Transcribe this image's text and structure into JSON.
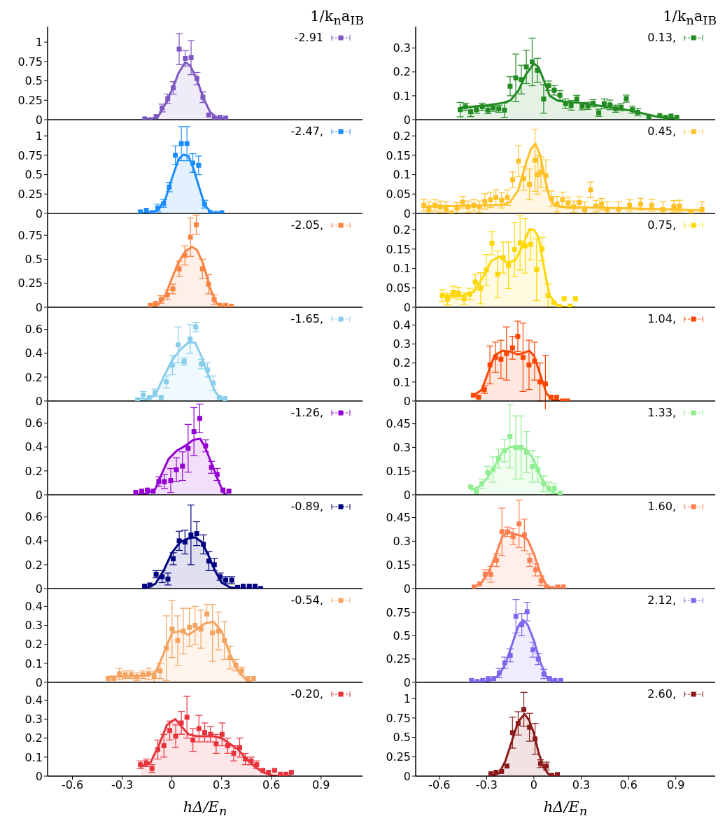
{
  "chart_data": [
    {
      "type": "scatter",
      "legend_title": "1/k$_{n}$a$_{IB}$",
      "legend": "top right",
      "tick_labels": "y",
      "xlim": [
        -0.75,
        1.15
      ],
      "xticks": [
        -0.6,
        -0.3,
        0,
        0.3,
        0.6,
        0.9
      ],
      "ylim": [
        0,
        1.2
      ],
      "yticks": [
        0,
        0.25,
        0.5,
        0.75,
        1
      ],
      "series": [
        {
          "name": "-2.91",
          "color": "#7e57c2",
          "marker": "square",
          "x": [
            -0.164,
            -0.13,
            -0.095,
            -0.059,
            -0.025,
            0.008,
            0.044,
            0.081,
            0.116,
            0.151,
            0.187,
            0.222,
            0.256,
            0.291,
            0.325
          ],
          "values": [
            0.01,
            0,
            0.04,
            0.15,
            0.27,
            0.41,
            0.91,
            0.79,
            0.8,
            0.53,
            0.29,
            0.06,
            0.02,
            0.03,
            0.02
          ],
          "errors": [
            null,
            null,
            null,
            0.05,
            0.06,
            0.08,
            0.2,
            0.1,
            0.22,
            0.08,
            0.07,
            null,
            null,
            null,
            null
          ]
        },
        {
          "type": "area",
          "color": "#7e57c2",
          "x": [
            -0.16,
            -0.12,
            -0.08,
            -0.04,
            0,
            0.04,
            0.08,
            0.11,
            0.15,
            0.19,
            0.23,
            0.27,
            0.33
          ],
          "values": [
            0,
            0.01,
            0.05,
            0.2,
            0.38,
            0.6,
            0.74,
            0.7,
            0.52,
            0.28,
            0.1,
            0.03,
            0
          ]
        }
      ]
    },
    {
      "type": "scatter",
      "legend": "top right",
      "tick_labels": "y",
      "xlim": [
        -0.75,
        1.15
      ],
      "xticks": [
        -0.6,
        -0.3,
        0,
        0.3,
        0.6,
        0.9
      ],
      "ylim": [
        0,
        1.2
      ],
      "yticks": [
        0,
        0.25,
        0.5,
        0.75,
        1
      ],
      "series": [
        {
          "name": "-2.47,",
          "color": "#1a8cff",
          "marker": "square",
          "x": [
            -0.19,
            -0.154,
            -0.12,
            -0.085,
            -0.05,
            -0.016,
            0.021,
            0.057,
            0.091,
            0.126,
            0.161,
            0.197,
            0.232,
            0.267,
            0.301
          ],
          "values": [
            0.02,
            0.04,
            0.01,
            0.07,
            0.13,
            0.34,
            0.75,
            0.9,
            0.9,
            0.65,
            0.62,
            0.12,
            0.01,
            0,
            0.01
          ],
          "errors": [
            null,
            null,
            null,
            0.05,
            0.05,
            0.06,
            0.12,
            0.22,
            0.22,
            0.12,
            0.12,
            0.05,
            null,
            null,
            null
          ]
        },
        {
          "type": "area",
          "color": "#1a8cff",
          "x": [
            -0.19,
            -0.12,
            -0.08,
            -0.04,
            0,
            0.04,
            0.07,
            0.1,
            0.13,
            0.17,
            0.2,
            0.24,
            0.3
          ],
          "values": [
            0,
            0.01,
            0.05,
            0.18,
            0.45,
            0.7,
            0.76,
            0.74,
            0.58,
            0.3,
            0.1,
            0.01,
            0
          ]
        }
      ]
    },
    {
      "type": "scatter",
      "legend": "top right",
      "tick_labels": "y",
      "xlim": [
        -0.75,
        1.15
      ],
      "xticks": [
        -0.6,
        -0.3,
        0,
        0.3,
        0.6,
        0.9
      ],
      "ylim": [
        0,
        0.97
      ],
      "yticks": [
        0,
        0.25,
        0.5,
        0.75
      ],
      "series": [
        {
          "name": "-2.05,",
          "color": "#f98542",
          "marker": "square",
          "x": [
            -0.13,
            -0.099,
            -0.065,
            -0.028,
            0.006,
            0.044,
            0.078,
            0.112,
            0.147,
            0.184,
            0.221,
            0.255,
            0.289,
            0.324,
            0.358
          ],
          "values": [
            0.02,
            0.04,
            0.08,
            0.13,
            0.19,
            0.4,
            0.54,
            0.73,
            0.86,
            0.4,
            0.24,
            0.08,
            0.02,
            0.02,
            0.01
          ],
          "errors": [
            null,
            null,
            0.04,
            0.05,
            0.05,
            0.08,
            0.1,
            0.2,
            0.1,
            0.1,
            0.1,
            0.05,
            null,
            null,
            null
          ]
        },
        {
          "type": "area",
          "color": "#f98542",
          "x": [
            -0.12,
            -0.08,
            -0.04,
            0,
            0.04,
            0.08,
            0.12,
            0.15,
            0.19,
            0.23,
            0.27,
            0.31,
            0.36
          ],
          "values": [
            0,
            0.03,
            0.12,
            0.3,
            0.47,
            0.58,
            0.63,
            0.6,
            0.45,
            0.2,
            0.04,
            0,
            0
          ]
        }
      ]
    },
    {
      "type": "scatter",
      "legend": "top right",
      "tick_labels": "y",
      "xlim": [
        -0.75,
        1.15
      ],
      "xticks": [
        -0.6,
        -0.3,
        0,
        0.3,
        0.6,
        0.9
      ],
      "ylim": [
        0,
        0.78
      ],
      "yticks": [
        0,
        0.2,
        0.4,
        0.6
      ],
      "series": [
        {
          "name": "-1.65,",
          "color": "#87ceeb",
          "marker": "square",
          "x": [
            -0.207,
            -0.173,
            -0.136,
            -0.102,
            -0.065,
            -0.034,
            0.003,
            0.038,
            0.074,
            0.11,
            0.144,
            0.178,
            0.215,
            0.249,
            0.286,
            0.32
          ],
          "values": [
            0.01,
            0.05,
            0.03,
            0.07,
            0.03,
            0.16,
            0.3,
            0.47,
            0.33,
            0.52,
            0.62,
            0.31,
            0.26,
            0.15,
            0.03,
            0.02
          ],
          "errors": [
            null,
            0.03,
            null,
            0.03,
            null,
            0.05,
            0.08,
            0.15,
            0.03,
            0.12,
            0.04,
            0.04,
            0.06,
            0.06,
            null,
            null
          ]
        },
        {
          "type": "area",
          "color": "#87ceeb",
          "x": [
            -0.2,
            -0.15,
            -0.1,
            -0.05,
            0,
            0.05,
            0.1,
            0.14,
            0.18,
            0.22,
            0.26,
            0.3,
            0.32
          ],
          "values": [
            0,
            0.01,
            0.05,
            0.2,
            0.34,
            0.43,
            0.49,
            0.49,
            0.37,
            0.22,
            0.08,
            0.01,
            0
          ]
        }
      ]
    },
    {
      "type": "scatter",
      "legend": "top right",
      "tick_labels": "y",
      "xlim": [
        -0.75,
        1.15
      ],
      "xticks": [
        -0.6,
        -0.3,
        0,
        0.3,
        0.6,
        0.9
      ],
      "ylim": [
        0,
        0.78
      ],
      "yticks": [
        0,
        0.2,
        0.4,
        0.6
      ],
      "series": [
        {
          "name": "-1.26,",
          "color": "#9400d3",
          "marker": "square",
          "x": [
            -0.218,
            -0.182,
            -0.148,
            -0.113,
            -0.079,
            -0.045,
            -0.007,
            0.027,
            0.064,
            0.098,
            0.133,
            0.168,
            0.204,
            0.239,
            0.273,
            0.308,
            0.344
          ],
          "values": [
            0.02,
            0.03,
            0.04,
            0.03,
            0.11,
            0.11,
            0.12,
            0.21,
            0.24,
            0.39,
            0.53,
            0.64,
            0.41,
            0.23,
            0.17,
            0.04,
            0.03
          ],
          "errors": [
            null,
            null,
            null,
            null,
            0.04,
            0.06,
            0.1,
            0.1,
            0.12,
            0.2,
            0.2,
            0.12,
            0.05,
            0.05,
            0.05,
            null,
            null
          ]
        },
        {
          "type": "area",
          "color": "#9400d3",
          "x": [
            -0.22,
            -0.15,
            -0.1,
            -0.06,
            -0.02,
            0.03,
            0.08,
            0.13,
            0.17,
            0.2,
            0.24,
            0.28,
            0.31,
            0.33
          ],
          "values": [
            0,
            0.01,
            0.05,
            0.18,
            0.3,
            0.37,
            0.41,
            0.46,
            0.47,
            0.4,
            0.26,
            0.12,
            0.02,
            0
          ]
        }
      ]
    },
    {
      "type": "scatter",
      "legend": "top right",
      "tick_labels": "y",
      "xlim": [
        -0.75,
        1.15
      ],
      "xticks": [
        -0.6,
        -0.3,
        0,
        0.3,
        0.6,
        0.9
      ],
      "ylim": [
        0,
        0.78
      ],
      "yticks": [
        0,
        0.2,
        0.4,
        0.6
      ],
      "series": [
        {
          "name": "-0.89,",
          "color": "#000080",
          "marker": "square",
          "x": [
            -0.165,
            -0.133,
            -0.095,
            -0.059,
            -0.024,
            0.008,
            0.044,
            0.079,
            0.115,
            0.15,
            0.19,
            0.223,
            0.256,
            0.291,
            0.325,
            0.361,
            0.396,
            0.43,
            0.467,
            0.502,
            0.536
          ],
          "values": [
            0.02,
            0.03,
            0.12,
            0.1,
            0.08,
            0.25,
            0.4,
            0.39,
            0.45,
            0.46,
            0.37,
            0.23,
            0.2,
            0.1,
            0.07,
            0.07,
            0.01,
            0.02,
            0.02,
            0.02,
            0
          ],
          "errors": [
            null,
            null,
            0.03,
            0.05,
            0.05,
            0.05,
            0.08,
            0.1,
            0.25,
            0.1,
            0.08,
            0.08,
            0.05,
            0.03,
            0.03,
            0.03,
            null,
            null,
            null,
            null,
            null
          ]
        },
        {
          "type": "area",
          "color": "#000080",
          "x": [
            -0.16,
            -0.1,
            -0.05,
            0,
            0.05,
            0.1,
            0.14,
            0.18,
            0.22,
            0.26,
            0.3,
            0.35,
            0.4,
            0.55
          ],
          "values": [
            0,
            0.04,
            0.15,
            0.3,
            0.39,
            0.42,
            0.43,
            0.39,
            0.28,
            0.15,
            0.05,
            0.01,
            0,
            0
          ]
        }
      ]
    },
    {
      "type": "scatter",
      "legend": "top right",
      "tick_labels": "y",
      "xlim": [
        -0.75,
        1.15
      ],
      "xticks": [
        -0.6,
        -0.3,
        0,
        0.3,
        0.6,
        0.9
      ],
      "ylim": [
        0,
        0.49
      ],
      "yticks": [
        0,
        0.1,
        0.2,
        0.3,
        0.4
      ],
      "series": [
        {
          "name": "-0.54,",
          "color": "#f4a460",
          "marker": "square",
          "x": [
            -0.385,
            -0.351,
            -0.317,
            -0.281,
            -0.246,
            -0.211,
            -0.175,
            -0.14,
            -0.107,
            -0.071,
            -0.034,
            0.001,
            0.035,
            0.069,
            0.106,
            0.14,
            0.175,
            0.211,
            0.245,
            0.281,
            0.317,
            0.351,
            0.386,
            0.421,
            0.457,
            0.492
          ],
          "values": [
            0.02,
            0.02,
            0.045,
            0.04,
            0.04,
            0.03,
            0.04,
            0.045,
            0.03,
            0.06,
            0.18,
            0.28,
            0.22,
            0.27,
            0.29,
            0.3,
            0.28,
            0.36,
            0.26,
            0.27,
            0.22,
            0.13,
            0.09,
            0.06,
            0.02,
            0.02
          ],
          "errors": [
            null,
            null,
            0.03,
            0.02,
            0.02,
            0.02,
            0.02,
            0.03,
            0.03,
            0.04,
            0.17,
            0.15,
            0.13,
            0.12,
            0.1,
            0.1,
            0.1,
            0.05,
            0.15,
            0.1,
            0.1,
            0.06,
            0.03,
            0.02,
            null,
            null
          ]
        },
        {
          "type": "area",
          "color": "#f4a460",
          "x": [
            -0.38,
            -0.25,
            -0.15,
            -0.1,
            -0.05,
            0,
            0.05,
            0.1,
            0.15,
            0.2,
            0.25,
            0.3,
            0.35,
            0.4,
            0.45,
            0.48
          ],
          "values": [
            0.03,
            0.03,
            0.035,
            0.05,
            0.15,
            0.26,
            0.27,
            0.25,
            0.28,
            0.31,
            0.32,
            0.27,
            0.15,
            0.06,
            0.01,
            0
          ]
        }
      ]
    },
    {
      "type": "scatter",
      "legend": "top right",
      "xlabel": "hΔ/E$_{n}$",
      "xlim": [
        -0.75,
        1.15
      ],
      "xticks": [
        -0.6,
        -0.3,
        0,
        0.3,
        0.6,
        0.9
      ],
      "ylim": [
        0,
        0.49
      ],
      "yticks": [
        0,
        0.1,
        0.2,
        0.3,
        0.4
      ],
      "series": [
        {
          "name": "-0.20,",
          "color": "#e8333c",
          "marker": "square",
          "x": [
            -0.19,
            -0.154,
            -0.12,
            -0.085,
            -0.048,
            -0.013,
            0.023,
            0.057,
            0.091,
            0.127,
            0.163,
            0.198,
            0.233,
            0.267,
            0.303,
            0.337,
            0.373,
            0.409,
            0.443,
            0.478,
            0.512,
            0.549,
            0.583,
            0.62,
            0.655,
            0.689,
            0.721
          ],
          "values": [
            0.06,
            0.07,
            0.04,
            0.14,
            0.16,
            0.24,
            0.21,
            0.28,
            0.31,
            0.19,
            0.25,
            0.23,
            0.22,
            0.17,
            0.22,
            0.16,
            0.12,
            0.15,
            0.09,
            0.08,
            0.06,
            0.03,
            0.02,
            0.03,
            0.01,
            0.01,
            0.02
          ],
          "errors": [
            0.02,
            0.02,
            0.02,
            0.05,
            0.06,
            0.05,
            0.06,
            0.06,
            0.11,
            0.06,
            0.07,
            0.05,
            0.04,
            0.05,
            0.06,
            0.04,
            0.04,
            0.05,
            0.03,
            0.02,
            0.02,
            null,
            null,
            null,
            null,
            null,
            null
          ]
        },
        {
          "type": "area",
          "color": "#e8333c",
          "x": [
            -0.19,
            -0.13,
            -0.08,
            -0.03,
            0.02,
            0.06,
            0.1,
            0.15,
            0.2,
            0.25,
            0.3,
            0.35,
            0.4,
            0.45,
            0.5,
            0.55,
            0.6,
            0.65,
            0.72
          ],
          "values": [
            0.05,
            0.07,
            0.16,
            0.27,
            0.3,
            0.26,
            0.22,
            0.21,
            0.21,
            0.21,
            0.2,
            0.17,
            0.14,
            0.09,
            0.05,
            0.02,
            0.005,
            0,
            0
          ]
        }
      ]
    },
    {
      "type": "scatter",
      "legend_title": "1/k$_{n}$a$_{IB}$",
      "legend": "top right",
      "tick_labels": "y",
      "xlim": [
        -0.75,
        1.15
      ],
      "xticks": [
        -0.6,
        -0.3,
        0,
        0.3,
        0.6,
        0.9
      ],
      "ylim": [
        0,
        0.39
      ],
      "yticks": [
        0,
        0.1,
        0.2,
        0.3
      ],
      "series": [
        {
          "name": "0.13,",
          "color": "#228b22",
          "marker": "square",
          "x": [
            -0.468,
            -0.435,
            -0.401,
            -0.365,
            -0.328,
            -0.292,
            -0.258,
            -0.223,
            -0.187,
            -0.151,
            -0.115,
            -0.08,
            -0.048,
            -0.011,
            0.022,
            0.062,
            0.093,
            0.129,
            0.165,
            0.201,
            0.236,
            0.272,
            0.306,
            0.342,
            0.376,
            0.411,
            0.446,
            0.482,
            0.519,
            0.553,
            0.586,
            0.624,
            0.659,
            0.729,
            0.799,
            0.835,
            0.87,
            0.906
          ],
          "values": [
            0.042,
            0.054,
            0.033,
            0.042,
            0.054,
            0.04,
            0.05,
            0.046,
            0.04,
            0.14,
            0.175,
            0.168,
            0.221,
            0.242,
            0.207,
            0.087,
            0.142,
            0.123,
            0.102,
            0.067,
            0.06,
            0.087,
            0.056,
            0.058,
            0.069,
            0.029,
            0.067,
            0.062,
            0.046,
            0.052,
            0.088,
            0.042,
            0.031,
            0.012,
            0.017,
            0.01,
            0.015,
            0.01
          ],
          "errors": [
            0.03,
            0.015,
            0.02,
            0.015,
            0.015,
            0.015,
            0.015,
            0.015,
            0.03,
            0.04,
            0.1,
            0.06,
            0.07,
            0.1,
            0.05,
            0.06,
            0.02,
            0.02,
            0.02,
            0.02,
            0.02,
            0.015,
            0.015,
            0.015,
            0.015,
            0.015,
            0.02,
            0.02,
            0.015,
            0.015,
            0.015,
            0.015,
            0.015,
            null,
            null,
            null,
            null,
            null
          ]
        },
        {
          "type": "area",
          "color": "#228b22",
          "x": [
            -0.47,
            -0.3,
            -0.2,
            -0.15,
            -0.1,
            -0.05,
            0,
            0.03,
            0.06,
            0.1,
            0.15,
            0.2,
            0.3,
            0.4,
            0.5,
            0.6,
            0.7,
            0.8,
            0.9
          ],
          "values": [
            0.05,
            0.06,
            0.07,
            0.08,
            0.12,
            0.19,
            0.235,
            0.22,
            0.17,
            0.1,
            0.08,
            0.075,
            0.07,
            0.06,
            0.05,
            0.04,
            0.025,
            0.01,
            0.005
          ]
        }
      ]
    },
    {
      "type": "scatter",
      "legend": "top right",
      "tick_labels": "y",
      "xlim": [
        -0.75,
        1.15
      ],
      "xticks": [
        -0.6,
        -0.3,
        0,
        0.3,
        0.6,
        0.9
      ],
      "ylim": [
        0,
        0.24
      ],
      "yticks": [
        0,
        0.05,
        0.1,
        0.15,
        0.2
      ],
      "series": [
        {
          "name": "0.45,",
          "color": "#ffc125",
          "marker": "square",
          "x": [
            -0.698,
            -0.666,
            -0.628,
            -0.595,
            -0.558,
            -0.523,
            -0.488,
            -0.452,
            -0.417,
            -0.381,
            -0.346,
            -0.311,
            -0.275,
            -0.241,
            -0.205,
            -0.168,
            -0.135,
            -0.098,
            -0.065,
            -0.028,
            0.007,
            0.025,
            0.045,
            0.076,
            0.112,
            0.147,
            0.182,
            0.217,
            0.252,
            0.288,
            0.323,
            0.359,
            0.394,
            0.429,
            0.464,
            0.536,
            0.607,
            0.677,
            0.748,
            0.818,
            0.888,
            0.923,
            0.996,
            1.066
          ],
          "values": [
            0.021,
            0.01,
            0.021,
            0.017,
            0.01,
            0.001,
            0.014,
            0.029,
            0.017,
            0.021,
            0.017,
            0.031,
            0.035,
            0.041,
            0.034,
            0.041,
            0.087,
            0.135,
            0.09,
            0.075,
            0.137,
            0.1,
            0.106,
            0.098,
            0.038,
            0.024,
            0.035,
            0.027,
            0.017,
            0.028,
            0.01,
            0.061,
            0.019,
            0.024,
            0.01,
            0.011,
            0.021,
            0.024,
            0.021,
            0.01,
            0.018,
            0.019,
            0.003,
            0.01
          ],
          "errors": [
            0.015,
            [
              0,
              0.03
            ],
            0.015,
            0.015,
            [
              0,
              0.03
            ],
            null,
            0.014,
            0.015,
            0.015,
            0.015,
            0.015,
            0.02,
            0.02,
            0.02,
            0.02,
            0.02,
            0.02,
            0.04,
            0.03,
            0.04,
            0.08,
            0.05,
            0.04,
            0.04,
            0.02,
            0.02,
            0.02,
            0.015,
            0.015,
            0.015,
            [
              0,
              0.03
            ],
            0.02,
            0.015,
            0.015,
            [
              0,
              0.03
            ],
            [
              0,
              0.03
            ],
            0.015,
            0.015,
            0.015,
            [
              0,
              0.03
            ],
            0.015,
            0.015,
            null,
            [
              0,
              0.03
            ]
          ]
        },
        {
          "type": "area",
          "color": "#ffc125",
          "x": [
            -0.7,
            -0.4,
            -0.2,
            -0.15,
            -0.1,
            -0.05,
            -0.02,
            0.01,
            0.04,
            0.07,
            0.1,
            0.13,
            0.2,
            0.4,
            0.7,
            1.07
          ],
          "values": [
            0.018,
            0.02,
            0.022,
            0.03,
            0.06,
            0.13,
            0.165,
            0.18,
            0.15,
            0.09,
            0.04,
            0.02,
            0.017,
            0.015,
            0.012,
            0.008
          ]
        }
      ]
    },
    {
      "type": "scatter",
      "legend": "top right",
      "tick_labels": "y",
      "xlim": [
        -0.75,
        1.15
      ],
      "xticks": [
        -0.6,
        -0.3,
        0,
        0.3,
        0.6,
        0.9
      ],
      "ylim": [
        0,
        0.24
      ],
      "yticks": [
        0,
        0.05,
        0.1,
        0.15,
        0.2
      ],
      "series": [
        {
          "name": "0.75,",
          "color": "#ffd700",
          "marker": "square",
          "x": [
            -0.582,
            -0.548,
            -0.511,
            -0.478,
            -0.443,
            -0.407,
            -0.372,
            -0.338,
            -0.302,
            -0.266,
            -0.23,
            -0.195,
            -0.161,
            -0.123,
            -0.088,
            -0.055,
            -0.02,
            0.017,
            0.052,
            0.09,
            0.126,
            0.16,
            0.192,
            0.229,
            0.264
          ],
          "values": [
            0.03,
            0.021,
            0.039,
            0.036,
            0.022,
            0.034,
            0.065,
            0.049,
            0.096,
            0.165,
            0.085,
            0.128,
            0.108,
            0.149,
            0.166,
            0.158,
            0.162,
            0.097,
            0.15,
            0.03,
            0.012,
            0.002,
            0.022,
            0.003,
            0.022
          ],
          "errors": [
            0.015,
            0.015,
            0.015,
            0.015,
            0.015,
            0.015,
            0.02,
            0.04,
            0.04,
            0.03,
            0.06,
            0.04,
            0.06,
            0.07,
            0.07,
            0.07,
            0.04,
            0.08,
            0.03,
            0.03,
            null,
            null,
            null,
            null,
            null
          ]
        },
        {
          "type": "area",
          "color": "#ffd700",
          "x": [
            -0.58,
            -0.45,
            -0.38,
            -0.32,
            -0.27,
            -0.22,
            -0.17,
            -0.12,
            -0.07,
            -0.03,
            0,
            0.03,
            0.07,
            0.1,
            0.15,
            0.2,
            0.26
          ],
          "values": [
            0.03,
            0.03,
            0.04,
            0.08,
            0.12,
            0.13,
            0.115,
            0.12,
            0.16,
            0.2,
            0.2,
            0.18,
            0.09,
            0.03,
            0.005,
            0,
            0
          ]
        }
      ]
    },
    {
      "type": "scatter",
      "legend": "top right",
      "tick_labels": "y",
      "xlim": [
        -0.75,
        1.15
      ],
      "xticks": [
        -0.6,
        -0.3,
        0,
        0.3,
        0.6,
        0.9
      ],
      "ylim": [
        0,
        0.49
      ],
      "yticks": [
        0,
        0.1,
        0.2,
        0.3,
        0.4
      ],
      "series": [
        {
          "name": "1.04,",
          "color": "#ff4500",
          "marker": "square",
          "x": [
            -0.384,
            -0.351,
            -0.314,
            -0.279,
            -0.244,
            -0.209,
            -0.174,
            -0.136,
            -0.102,
            -0.069,
            -0.031,
            0.004,
            0.038,
            0.073,
            0.109,
            0.144,
            0.18,
            0.213
          ],
          "values": [
            0.03,
            0.02,
            0.06,
            0.19,
            0.23,
            0.22,
            0.25,
            0.28,
            0.34,
            0.23,
            0.19,
            0.21,
            0.1,
            0.09,
            0.02,
            0.02,
            0,
            0
          ],
          "errors": [
            null,
            null,
            0.02,
            0.1,
            0.08,
            0.1,
            0.14,
            0.06,
            0.08,
            0.18,
            0.13,
            0.1,
            0.1,
            0.15,
            null,
            null,
            null,
            null
          ]
        },
        {
          "type": "area",
          "color": "#ff4500",
          "x": [
            -0.38,
            -0.33,
            -0.29,
            -0.25,
            -0.2,
            -0.15,
            -0.1,
            -0.06,
            -0.03,
            0,
            0.04,
            0.08,
            0.12,
            0.17
          ],
          "values": [
            0.03,
            0.06,
            0.15,
            0.24,
            0.265,
            0.26,
            0.245,
            0.255,
            0.265,
            0.24,
            0.14,
            0.04,
            0.005,
            0
          ]
        }
      ]
    },
    {
      "type": "scatter",
      "legend": "top right",
      "tick_labels": "y",
      "xlim": [
        -0.75,
        1.15
      ],
      "xticks": [
        -0.6,
        -0.3,
        0,
        0.3,
        0.6,
        0.9
      ],
      "ylim": [
        0,
        0.59
      ],
      "yticks": [
        0,
        0.15,
        0.3,
        0.45
      ],
      "series": [
        {
          "name": "1.33,",
          "color": "#90ee90",
          "marker": "square",
          "x": [
            -0.401,
            -0.365,
            -0.33,
            -0.293,
            -0.259,
            -0.224,
            -0.188,
            -0.152,
            -0.115,
            -0.081,
            -0.046,
            -0.01,
            0.025,
            0.062,
            0.095,
            0.13,
            0.167
          ],
          "values": [
            0.05,
            0.02,
            0.07,
            0.14,
            0.16,
            0.23,
            0.28,
            0.37,
            0.3,
            0.3,
            0.27,
            0.18,
            0.16,
            0.07,
            0.04,
            0.04,
            0.01
          ],
          "errors": [
            null,
            null,
            0.03,
            0.04,
            0.08,
            0.06,
            0.07,
            0.2,
            0.2,
            0.2,
            0.13,
            0.1,
            0.08,
            0.05,
            0.04,
            0.03,
            null
          ]
        },
        {
          "type": "area",
          "color": "#90ee90",
          "x": [
            -0.4,
            -0.35,
            -0.3,
            -0.25,
            -0.2,
            -0.15,
            -0.1,
            -0.05,
            0,
            0.05,
            0.1,
            0.15,
            0.18
          ],
          "values": [
            0.03,
            0.05,
            0.1,
            0.18,
            0.27,
            0.305,
            0.3,
            0.29,
            0.22,
            0.1,
            0.03,
            0,
            0
          ]
        }
      ]
    },
    {
      "type": "scatter",
      "legend": "top right",
      "tick_labels": "y",
      "xlim": [
        -0.75,
        1.15
      ],
      "xticks": [
        -0.6,
        -0.3,
        0,
        0.3,
        0.6,
        0.9
      ],
      "ylim": [
        0,
        0.59
      ],
      "yticks": [
        0,
        0.15,
        0.3,
        0.45
      ],
      "series": [
        {
          "name": "1.60,",
          "color": "#ff7f50",
          "marker": "square",
          "x": [
            -0.379,
            -0.344,
            -0.309,
            -0.273,
            -0.238,
            -0.203,
            -0.167,
            -0.132,
            -0.094,
            -0.06,
            -0.027,
            0.011,
            0.046,
            0.081,
            0.116,
            0.151,
            0.187
          ],
          "values": [
            0.01,
            0.03,
            0.09,
            0.09,
            0.18,
            0.36,
            0.36,
            0.33,
            0.41,
            0.34,
            0.18,
            0.12,
            0.05,
            0.01,
            0,
            0.01,
            0.01
          ],
          "errors": [
            null,
            null,
            0.03,
            0.05,
            0.04,
            0.15,
            0.03,
            0.05,
            0.15,
            0.1,
            0.04,
            0.04,
            0.03,
            null,
            null,
            null,
            null
          ]
        },
        {
          "type": "area",
          "color": "#ff7f50",
          "x": [
            -0.38,
            -0.33,
            -0.28,
            -0.24,
            -0.2,
            -0.16,
            -0.12,
            -0.08,
            -0.04,
            0,
            0.04,
            0.08,
            0.12,
            0.19
          ],
          "values": [
            0.01,
            0.04,
            0.12,
            0.22,
            0.33,
            0.36,
            0.345,
            0.335,
            0.31,
            0.22,
            0.1,
            0.02,
            0,
            0
          ]
        }
      ]
    },
    {
      "type": "scatter",
      "legend": "top right",
      "tick_labels": "y",
      "xlim": [
        -0.75,
        1.15
      ],
      "xticks": [
        -0.6,
        -0.3,
        0,
        0.3,
        0.6,
        0.9
      ],
      "ylim": [
        0,
        1
      ],
      "yticks": [
        0,
        0.25,
        0.5,
        0.75
      ],
      "series": [
        {
          "name": "2.12,",
          "color": "#7b68ee",
          "marker": "square",
          "x": [
            -0.396,
            -0.36,
            -0.325,
            -0.29,
            -0.255,
            -0.22,
            -0.185,
            -0.15,
            -0.114,
            -0.077,
            -0.043,
            -0.006,
            0.028,
            0.063,
            0.1,
            0.133,
            0.17
          ],
          "values": [
            0.02,
            0.01,
            0.02,
            0.04,
            0.04,
            0.1,
            0.21,
            0.29,
            0.71,
            0.62,
            0.76,
            0.35,
            0.25,
            0.09,
            0.04,
            0.02,
            0.02
          ],
          "errors": [
            null,
            null,
            null,
            null,
            null,
            0.05,
            0.06,
            0.07,
            0.18,
            0.12,
            0.1,
            0.08,
            0.06,
            0.05,
            null,
            null,
            null
          ]
        },
        {
          "type": "area",
          "color": "#7b68ee",
          "x": [
            -0.39,
            -0.3,
            -0.26,
            -0.22,
            -0.18,
            -0.14,
            -0.1,
            -0.07,
            -0.04,
            0,
            0.04,
            0.08,
            0.12,
            0.17
          ],
          "values": [
            0,
            0.01,
            0.03,
            0.08,
            0.2,
            0.4,
            0.6,
            0.67,
            0.62,
            0.45,
            0.22,
            0.06,
            0.01,
            0
          ]
        }
      ]
    },
    {
      "type": "scatter",
      "legend": "top right",
      "xlabel": "hΔ/E$_{n}$",
      "xlim": [
        -0.75,
        1.15
      ],
      "xticks": [
        -0.6,
        -0.3,
        0,
        0.3,
        0.6,
        0.9
      ],
      "ylim": [
        0,
        1.2
      ],
      "yticks": [
        0,
        0.25,
        0.5,
        0.75,
        1
      ],
      "series": [
        {
          "name": "2.60,",
          "color": "#8b1a1a",
          "marker": "square",
          "x": [
            -0.273,
            -0.24,
            -0.205,
            -0.171,
            -0.136,
            -0.1,
            -0.064,
            -0.028,
            0.007,
            0.042,
            0.079,
            0.114,
            0.149
          ],
          "values": [
            0.03,
            0.05,
            0.06,
            0.13,
            0.56,
            0.68,
            0.86,
            0.63,
            0.48,
            0.16,
            0.13,
            0.01,
            0.02
          ],
          "errors": [
            null,
            null,
            null,
            null,
            0.2,
            0.15,
            0.22,
            0.18,
            0.2,
            0.05,
            0.05,
            null,
            null
          ]
        },
        {
          "type": "area",
          "color": "#8b1a1a",
          "x": [
            -0.27,
            -0.22,
            -0.18,
            -0.14,
            -0.1,
            -0.06,
            -0.03,
            0,
            0.03,
            0.06,
            0.09,
            0.12,
            0.15
          ],
          "values": [
            0,
            0.04,
            0.2,
            0.45,
            0.7,
            0.8,
            0.72,
            0.55,
            0.3,
            0.12,
            0.03,
            0,
            0
          ]
        }
      ]
    }
  ]
}
